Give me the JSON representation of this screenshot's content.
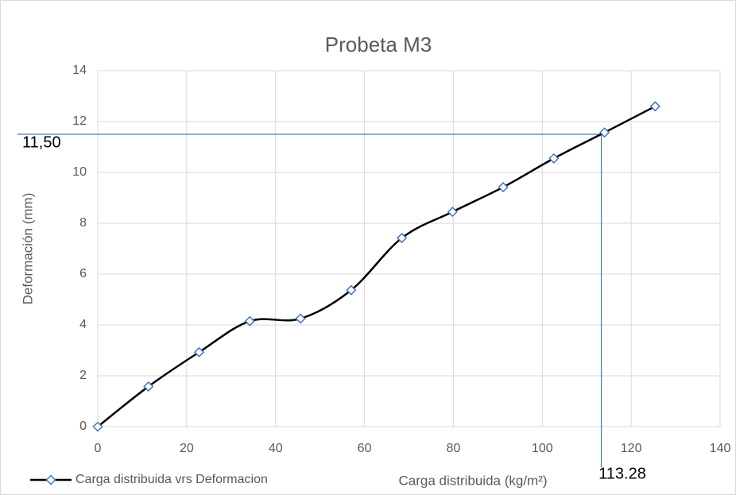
{
  "chart_data": {
    "type": "line",
    "title": "Probeta M3",
    "x_label": "Carga distribuida (kg/m²)",
    "y_label": "Deformación (mm)",
    "x": [
      0,
      11.4,
      22.8,
      34.2,
      45.6,
      57,
      68.4,
      79.8,
      91.2,
      102.6,
      114,
      125.4
    ],
    "series": [
      {
        "name": "Carga distribuida vrs Deformacion",
        "color": "#000000",
        "marker_color": "#4472c4",
        "values": [
          0,
          1.58,
          2.93,
          4.15,
          4.25,
          5.37,
          7.42,
          8.45,
          9.42,
          10.55,
          11.57,
          12.6
        ]
      }
    ],
    "xlim": [
      0,
      140
    ],
    "xticks": [
      0,
      20,
      40,
      60,
      80,
      100,
      120,
      140
    ],
    "ylim": [
      0,
      14
    ],
    "yticks": [
      0,
      2,
      4,
      6,
      8,
      10,
      12,
      14
    ],
    "grid": true,
    "smooth": true,
    "legend": "bottom-left",
    "reference_lines": {
      "y": {
        "value": 11.5,
        "label": "11,50"
      },
      "x": 113.28,
      "color": "#4a7ab5"
    }
  }
}
